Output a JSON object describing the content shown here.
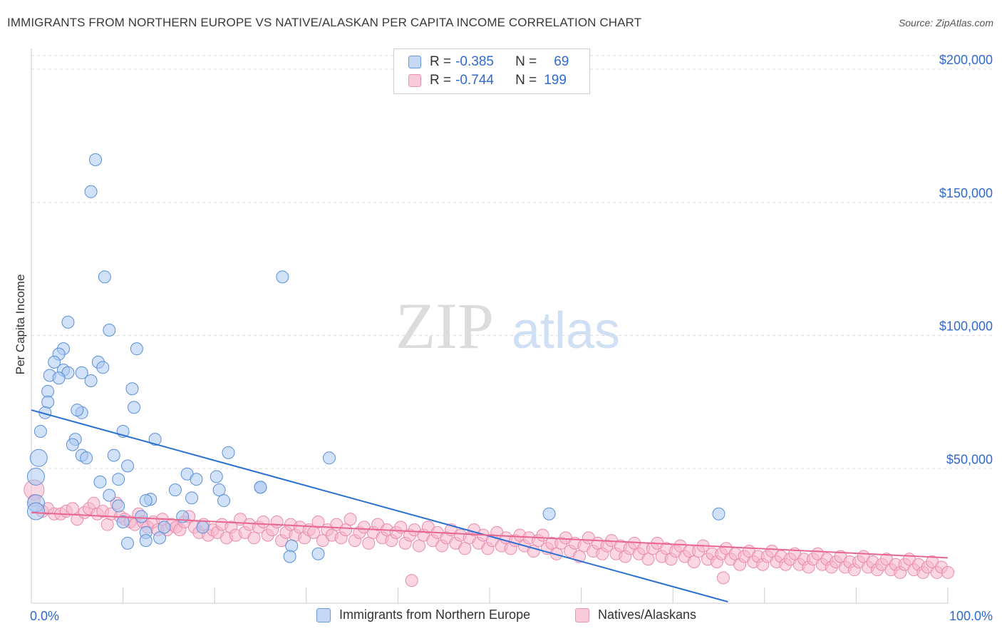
{
  "title": "IMMIGRANTS FROM NORTHERN EUROPE VS NATIVE/ALASKAN PER CAPITA INCOME CORRELATION CHART",
  "source": "Source: ZipAtlas.com",
  "watermark": {
    "zip": "ZIP",
    "atlas": "atlas"
  },
  "legend": {
    "r_label": "R =",
    "n_label": "N =",
    "series1": {
      "r": "-0.385",
      "n": "69"
    },
    "series2": {
      "r": "-0.744",
      "n": "199"
    }
  },
  "colors": {
    "blue_fill": "#a9c8f2",
    "blue_stroke": "#5b8fd6",
    "blue_line": "#2a70d0",
    "pink_fill": "#f6b6cc",
    "pink_stroke": "#e98bab",
    "pink_line": "#e8668f",
    "axis_label": "#2f6ad0"
  },
  "chart_data": {
    "type": "scatter",
    "title": "IMMIGRANTS FROM NORTHERN EUROPE VS NATIVE/ALASKAN PER CAPITA INCOME CORRELATION CHART",
    "xlabel": "",
    "ylabel": "Per Capita Income",
    "xlim": [
      0,
      100
    ],
    "ylim": [
      0,
      205000
    ],
    "x_tick_labels": [
      "0.0%",
      "100.0%"
    ],
    "y_ticks": [
      50000,
      100000,
      150000,
      200000
    ],
    "y_tick_labels": [
      "$50,000",
      "$100,000",
      "$150,000",
      "$200,000"
    ],
    "grid": true,
    "series": [
      {
        "name": "Immigrants from Northern Europe",
        "r": -0.385,
        "n": 69,
        "trend": {
          "x0": 0,
          "y0": 72000,
          "x1": 76,
          "y1": 0
        },
        "points": [
          [
            7.0,
            166000
          ],
          [
            6.5,
            154000
          ],
          [
            8.0,
            122000
          ],
          [
            27.4,
            122000
          ],
          [
            4.0,
            105000
          ],
          [
            8.5,
            102000
          ],
          [
            11.5,
            95000
          ],
          [
            3.5,
            95000
          ],
          [
            3.0,
            93000
          ],
          [
            2.5,
            90000
          ],
          [
            7.3,
            90000
          ],
          [
            7.8,
            88000
          ],
          [
            3.5,
            87000
          ],
          [
            4.0,
            86000
          ],
          [
            5.5,
            86000
          ],
          [
            2.0,
            85000
          ],
          [
            3.0,
            84000
          ],
          [
            6.5,
            83000
          ],
          [
            11.0,
            80000
          ],
          [
            1.8,
            79000
          ],
          [
            1.8,
            75000
          ],
          [
            1.5,
            71000
          ],
          [
            5.5,
            71000
          ],
          [
            5.0,
            72000
          ],
          [
            11.2,
            73000
          ],
          [
            1.0,
            64000
          ],
          [
            10.0,
            64000
          ],
          [
            4.8,
            61000
          ],
          [
            13.5,
            61000
          ],
          [
            4.5,
            59000
          ],
          [
            5.5,
            55000
          ],
          [
            6.0,
            54000
          ],
          [
            0.8,
            54000
          ],
          [
            9.0,
            55000
          ],
          [
            21.5,
            56000
          ],
          [
            32.5,
            54000
          ],
          [
            10.5,
            51000
          ],
          [
            0.5,
            47000
          ],
          [
            9.5,
            46000
          ],
          [
            17.0,
            48000
          ],
          [
            7.5,
            45000
          ],
          [
            20.2,
            47000
          ],
          [
            18.0,
            46000
          ],
          [
            20.5,
            42000
          ],
          [
            15.7,
            42000
          ],
          [
            8.5,
            40000
          ],
          [
            13.0,
            38500
          ],
          [
            12.5,
            38000
          ],
          [
            17.5,
            39000
          ],
          [
            21.0,
            38000
          ],
          [
            25.0,
            43000
          ],
          [
            9.5,
            36000
          ],
          [
            0.5,
            37000
          ],
          [
            0.5,
            34000
          ],
          [
            16.5,
            32000
          ],
          [
            12.0,
            32000
          ],
          [
            10.0,
            30000
          ],
          [
            14.5,
            28000
          ],
          [
            18.7,
            28000
          ],
          [
            12.5,
            26000
          ],
          [
            14.0,
            24000
          ],
          [
            10.5,
            22000
          ],
          [
            12.5,
            23000
          ],
          [
            28.4,
            21000
          ],
          [
            31.3,
            18000
          ],
          [
            28.2,
            17000
          ],
          [
            56.5,
            33000
          ],
          [
            75.0,
            33000
          ],
          [
            25.0,
            43000
          ]
        ]
      },
      {
        "name": "Natives/Alaskans",
        "r": -0.744,
        "n": 199,
        "trend": {
          "x0": 0,
          "y0": 33500,
          "x1": 100,
          "y1": 16500
        },
        "points": [
          [
            0.3,
            42000
          ],
          [
            0.3,
            38000
          ],
          [
            1.2,
            34000
          ],
          [
            1.8,
            35000
          ],
          [
            2.5,
            33000
          ],
          [
            3.2,
            33000
          ],
          [
            3.8,
            34000
          ],
          [
            4.5,
            35000
          ],
          [
            5.0,
            31000
          ],
          [
            5.8,
            33500
          ],
          [
            6.3,
            35000
          ],
          [
            6.8,
            37000
          ],
          [
            7.2,
            33000
          ],
          [
            7.8,
            34000
          ],
          [
            8.3,
            29000
          ],
          [
            8.7,
            33000
          ],
          [
            9.3,
            37000
          ],
          [
            9.7,
            32000
          ],
          [
            10.2,
            31000
          ],
          [
            10.8,
            30000
          ],
          [
            11.3,
            29000
          ],
          [
            11.7,
            33000
          ],
          [
            12.2,
            30000
          ],
          [
            12.7,
            28000
          ],
          [
            13.3,
            30000
          ],
          [
            13.8,
            27000
          ],
          [
            14.3,
            31000
          ],
          [
            14.8,
            27000
          ],
          [
            15.3,
            29000
          ],
          [
            15.8,
            28000
          ],
          [
            16.2,
            27000
          ],
          [
            16.7,
            30000
          ],
          [
            17.2,
            32000
          ],
          [
            17.8,
            28000
          ],
          [
            18.3,
            26000
          ],
          [
            18.8,
            29000
          ],
          [
            19.3,
            25000
          ],
          [
            19.8,
            27000
          ],
          [
            20.3,
            26000
          ],
          [
            20.8,
            29000
          ],
          [
            21.3,
            24000
          ],
          [
            21.8,
            28000
          ],
          [
            22.3,
            25000
          ],
          [
            22.8,
            31000
          ],
          [
            23.3,
            26000
          ],
          [
            23.8,
            29000
          ],
          [
            24.3,
            24000
          ],
          [
            24.8,
            28000
          ],
          [
            25.3,
            30000
          ],
          [
            25.8,
            25000
          ],
          [
            26.3,
            27000
          ],
          [
            26.8,
            30000
          ],
          [
            27.3,
            23000
          ],
          [
            27.8,
            26000
          ],
          [
            28.3,
            29000
          ],
          [
            28.8,
            25000
          ],
          [
            29.3,
            28000
          ],
          [
            29.8,
            24000
          ],
          [
            30.3,
            27000
          ],
          [
            30.8,
            26000
          ],
          [
            31.3,
            30000
          ],
          [
            31.8,
            23000
          ],
          [
            32.3,
            27000
          ],
          [
            32.8,
            25000
          ],
          [
            33.3,
            29000
          ],
          [
            33.8,
            24000
          ],
          [
            34.3,
            27000
          ],
          [
            34.8,
            31000
          ],
          [
            35.3,
            23000
          ],
          [
            35.8,
            26000
          ],
          [
            36.3,
            28000
          ],
          [
            36.8,
            22000
          ],
          [
            37.3,
            26000
          ],
          [
            37.8,
            29000
          ],
          [
            38.3,
            24000
          ],
          [
            38.8,
            27000
          ],
          [
            39.3,
            23000
          ],
          [
            39.8,
            26000
          ],
          [
            40.3,
            28000
          ],
          [
            40.8,
            22000
          ],
          [
            41.3,
            25000
          ],
          [
            41.8,
            27000
          ],
          [
            42.3,
            21000
          ],
          [
            42.8,
            25000
          ],
          [
            43.3,
            28000
          ],
          [
            43.8,
            23000
          ],
          [
            44.3,
            26000
          ],
          [
            44.8,
            21000
          ],
          [
            45.3,
            24000
          ],
          [
            45.8,
            27000
          ],
          [
            46.3,
            22000
          ],
          [
            46.8,
            25000
          ],
          [
            47.3,
            20000
          ],
          [
            47.8,
            24000
          ],
          [
            48.3,
            27000
          ],
          [
            48.8,
            22000
          ],
          [
            49.3,
            25000
          ],
          [
            49.8,
            20000
          ],
          [
            50.3,
            23000
          ],
          [
            50.8,
            26000
          ],
          [
            51.3,
            21000
          ],
          [
            51.8,
            24000
          ],
          [
            52.3,
            20000
          ],
          [
            52.8,
            23000
          ],
          [
            53.3,
            25000
          ],
          [
            53.8,
            21000
          ],
          [
            54.3,
            24000
          ],
          [
            54.8,
            19000
          ],
          [
            55.3,
            23000
          ],
          [
            55.8,
            25000
          ],
          [
            56.3,
            20000
          ],
          [
            56.8,
            22000
          ],
          [
            57.3,
            18000
          ],
          [
            57.8,
            22000
          ],
          [
            58.3,
            24000
          ],
          [
            58.8,
            19000
          ],
          [
            59.3,
            22000
          ],
          [
            59.8,
            17000
          ],
          [
            60.3,
            21000
          ],
          [
            60.8,
            24000
          ],
          [
            61.3,
            19000
          ],
          [
            61.8,
            22000
          ],
          [
            62.3,
            18000
          ],
          [
            62.8,
            21000
          ],
          [
            63.3,
            23000
          ],
          [
            63.8,
            18000
          ],
          [
            64.3,
            21000
          ],
          [
            64.8,
            17000
          ],
          [
            65.3,
            20000
          ],
          [
            65.8,
            22000
          ],
          [
            66.3,
            18000
          ],
          [
            66.8,
            20000
          ],
          [
            67.3,
            16000
          ],
          [
            67.8,
            20000
          ],
          [
            68.3,
            22000
          ],
          [
            68.8,
            17000
          ],
          [
            69.3,
            20000
          ],
          [
            69.8,
            16000
          ],
          [
            70.3,
            19000
          ],
          [
            70.8,
            21000
          ],
          [
            71.3,
            17000
          ],
          [
            71.8,
            19000
          ],
          [
            72.3,
            15000
          ],
          [
            72.8,
            19000
          ],
          [
            73.3,
            21000
          ],
          [
            73.8,
            16000
          ],
          [
            74.3,
            18000
          ],
          [
            74.8,
            15000
          ],
          [
            75.3,
            18000
          ],
          [
            75.8,
            20000
          ],
          [
            76.3,
            16000
          ],
          [
            76.8,
            18000
          ],
          [
            77.3,
            14000
          ],
          [
            77.8,
            17000
          ],
          [
            78.3,
            19000
          ],
          [
            78.8,
            15000
          ],
          [
            79.3,
            17000
          ],
          [
            79.8,
            14000
          ],
          [
            80.3,
            17000
          ],
          [
            80.8,
            19000
          ],
          [
            81.3,
            15000
          ],
          [
            81.8,
            17000
          ],
          [
            82.3,
            14000
          ],
          [
            82.8,
            16000
          ],
          [
            83.3,
            18000
          ],
          [
            83.8,
            14000
          ],
          [
            84.3,
            16000
          ],
          [
            84.8,
            13000
          ],
          [
            85.3,
            16000
          ],
          [
            85.8,
            18000
          ],
          [
            86.3,
            14000
          ],
          [
            86.8,
            16000
          ],
          [
            87.3,
            13000
          ],
          [
            87.8,
            15000
          ],
          [
            88.3,
            17000
          ],
          [
            88.8,
            13000
          ],
          [
            89.3,
            15000
          ],
          [
            89.8,
            12000
          ],
          [
            90.3,
            15000
          ],
          [
            90.8,
            17000
          ],
          [
            91.3,
            13000
          ],
          [
            91.8,
            15000
          ],
          [
            92.3,
            12000
          ],
          [
            92.8,
            14000
          ],
          [
            93.3,
            16000
          ],
          [
            93.8,
            12000
          ],
          [
            94.3,
            14000
          ],
          [
            94.8,
            11000
          ],
          [
            95.3,
            14000
          ],
          [
            95.8,
            16000
          ],
          [
            96.3,
            12000
          ],
          [
            96.8,
            14000
          ],
          [
            97.3,
            11000
          ],
          [
            97.8,
            13000
          ],
          [
            98.3,
            15000
          ],
          [
            98.8,
            11000
          ],
          [
            99.3,
            13000
          ],
          [
            100.0,
            11000
          ],
          [
            41.5,
            8000
          ],
          [
            75.5,
            9000
          ]
        ]
      }
    ]
  },
  "bottom_legend": [
    "Immigrants from Northern Europe",
    "Natives/Alaskans"
  ]
}
